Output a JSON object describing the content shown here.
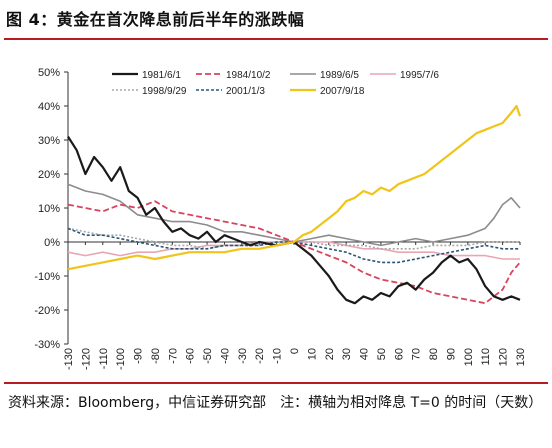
{
  "figure": {
    "title": "图 4：黄金在首次降息前后半年的涨跌幅",
    "source": "资料来源：Bloomberg，中信证券研究部　注：横轴为相对降息 T=0 的时间（天数）"
  },
  "chart_data": {
    "type": "line",
    "title": "",
    "xlabel": "",
    "ylabel": "",
    "xlim": [
      -130,
      130
    ],
    "ylim": [
      -30,
      50
    ],
    "x_ticks": [
      "-130",
      "-120",
      "-110",
      "-100",
      "-90",
      "-80",
      "-70",
      "-60",
      "-50",
      "-40",
      "-30",
      "-20",
      "-10",
      "0",
      "10",
      "20",
      "30",
      "40",
      "50",
      "60",
      "70",
      "80",
      "90",
      "100",
      "110",
      "120",
      "130"
    ],
    "y_ticks": [
      "50%",
      "40%",
      "30%",
      "20%",
      "10%",
      "0%",
      "-10%",
      "-20%",
      "-30%"
    ],
    "y_tick_values": [
      50,
      40,
      30,
      20,
      10,
      0,
      -10,
      -20,
      -30
    ],
    "legend_placement": "top",
    "grid": false,
    "series": [
      {
        "name": "1981/6/1",
        "color": "#1a1a1a",
        "dash": "solid",
        "width": 2.2,
        "points": [
          [
            -130,
            31
          ],
          [
            -125,
            27
          ],
          [
            -120,
            20
          ],
          [
            -115,
            25
          ],
          [
            -110,
            22
          ],
          [
            -105,
            18
          ],
          [
            -100,
            22
          ],
          [
            -95,
            15
          ],
          [
            -90,
            13
          ],
          [
            -85,
            8
          ],
          [
            -80,
            10
          ],
          [
            -75,
            6
          ],
          [
            -70,
            3
          ],
          [
            -65,
            4
          ],
          [
            -60,
            2
          ],
          [
            -55,
            1
          ],
          [
            -50,
            3
          ],
          [
            -45,
            0
          ],
          [
            -40,
            2
          ],
          [
            -35,
            1
          ],
          [
            -30,
            0
          ],
          [
            -25,
            -1
          ],
          [
            -20,
            0
          ],
          [
            -10,
            -1
          ],
          [
            0,
            0
          ],
          [
            5,
            -2
          ],
          [
            10,
            -4
          ],
          [
            15,
            -7
          ],
          [
            20,
            -10
          ],
          [
            25,
            -14
          ],
          [
            30,
            -17
          ],
          [
            35,
            -18
          ],
          [
            40,
            -16
          ],
          [
            45,
            -17
          ],
          [
            50,
            -15
          ],
          [
            55,
            -16
          ],
          [
            60,
            -13
          ],
          [
            65,
            -12
          ],
          [
            70,
            -14
          ],
          [
            75,
            -11
          ],
          [
            80,
            -9
          ],
          [
            85,
            -6
          ],
          [
            90,
            -4
          ],
          [
            95,
            -6
          ],
          [
            100,
            -5
          ],
          [
            105,
            -8
          ],
          [
            110,
            -13
          ],
          [
            115,
            -16
          ],
          [
            120,
            -17
          ],
          [
            125,
            -16
          ],
          [
            130,
            -17
          ]
        ]
      },
      {
        "name": "1984/10/2",
        "color": "#d9435b",
        "dash": "6,3",
        "width": 1.8,
        "points": [
          [
            -130,
            11
          ],
          [
            -120,
            10
          ],
          [
            -110,
            9
          ],
          [
            -100,
            11
          ],
          [
            -90,
            10
          ],
          [
            -80,
            12
          ],
          [
            -70,
            9
          ],
          [
            -60,
            8
          ],
          [
            -50,
            7
          ],
          [
            -40,
            6
          ],
          [
            -30,
            5
          ],
          [
            -20,
            4
          ],
          [
            -10,
            2
          ],
          [
            0,
            0
          ],
          [
            10,
            -2
          ],
          [
            20,
            -4
          ],
          [
            30,
            -6
          ],
          [
            40,
            -9
          ],
          [
            50,
            -11
          ],
          [
            60,
            -12
          ],
          [
            70,
            -13
          ],
          [
            80,
            -15
          ],
          [
            90,
            -16
          ],
          [
            100,
            -17
          ],
          [
            110,
            -18
          ],
          [
            120,
            -14
          ],
          [
            125,
            -9
          ],
          [
            130,
            -6
          ]
        ]
      },
      {
        "name": "1989/6/5",
        "color": "#8c8c8c",
        "dash": "solid",
        "width": 1.6,
        "points": [
          [
            -130,
            17
          ],
          [
            -120,
            15
          ],
          [
            -110,
            14
          ],
          [
            -100,
            12
          ],
          [
            -90,
            8
          ],
          [
            -80,
            7
          ],
          [
            -70,
            6
          ],
          [
            -60,
            6
          ],
          [
            -50,
            5
          ],
          [
            -40,
            3
          ],
          [
            -30,
            3
          ],
          [
            -20,
            2
          ],
          [
            -10,
            1
          ],
          [
            0,
            0
          ],
          [
            10,
            1
          ],
          [
            20,
            2
          ],
          [
            30,
            1
          ],
          [
            40,
            0
          ],
          [
            50,
            -1
          ],
          [
            60,
            0
          ],
          [
            70,
            1
          ],
          [
            80,
            0
          ],
          [
            90,
            1
          ],
          [
            100,
            2
          ],
          [
            110,
            4
          ],
          [
            115,
            7
          ],
          [
            120,
            11
          ],
          [
            125,
            13
          ],
          [
            130,
            10
          ]
        ]
      },
      {
        "name": "1995/7/6",
        "color": "#e8a6b4",
        "dash": "solid",
        "width": 1.6,
        "points": [
          [
            -130,
            -3
          ],
          [
            -120,
            -4
          ],
          [
            -110,
            -3
          ],
          [
            -100,
            -4
          ],
          [
            -90,
            -3
          ],
          [
            -80,
            -3
          ],
          [
            -70,
            -2
          ],
          [
            -60,
            -2
          ],
          [
            -50,
            -1
          ],
          [
            -40,
            -1
          ],
          [
            -30,
            -1
          ],
          [
            -20,
            0
          ],
          [
            -10,
            0
          ],
          [
            0,
            0
          ],
          [
            10,
            0
          ],
          [
            20,
            0
          ],
          [
            30,
            -1
          ],
          [
            40,
            -2
          ],
          [
            50,
            -2
          ],
          [
            60,
            -3
          ],
          [
            70,
            -3
          ],
          [
            80,
            -3
          ],
          [
            90,
            -4
          ],
          [
            100,
            -4
          ],
          [
            110,
            -4
          ],
          [
            120,
            -5
          ],
          [
            130,
            -5
          ]
        ]
      },
      {
        "name": "1998/9/29",
        "color": "#a8a8a8",
        "dash": "2,2",
        "width": 1.6,
        "points": [
          [
            -130,
            4
          ],
          [
            -120,
            3
          ],
          [
            -110,
            2
          ],
          [
            -100,
            2
          ],
          [
            -90,
            1
          ],
          [
            -80,
            0
          ],
          [
            -70,
            -1
          ],
          [
            -60,
            -1
          ],
          [
            -50,
            -2
          ],
          [
            -40,
            -1
          ],
          [
            -30,
            -1
          ],
          [
            -20,
            -1
          ],
          [
            -10,
            0
          ],
          [
            0,
            0
          ],
          [
            10,
            0
          ],
          [
            20,
            -1
          ],
          [
            30,
            -1
          ],
          [
            40,
            -1
          ],
          [
            50,
            -2
          ],
          [
            60,
            -2
          ],
          [
            70,
            -2
          ],
          [
            80,
            -1
          ],
          [
            90,
            -1
          ],
          [
            100,
            -1
          ],
          [
            110,
            0
          ],
          [
            120,
            0
          ],
          [
            130,
            0
          ]
        ]
      },
      {
        "name": "2001/1/3",
        "color": "#2b5577",
        "dash": "3,2",
        "width": 1.6,
        "points": [
          [
            -130,
            4
          ],
          [
            -120,
            2
          ],
          [
            -110,
            2
          ],
          [
            -100,
            1
          ],
          [
            -90,
            0
          ],
          [
            -80,
            -1
          ],
          [
            -70,
            -2
          ],
          [
            -60,
            -2
          ],
          [
            -50,
            -2
          ],
          [
            -40,
            -1
          ],
          [
            -30,
            -1
          ],
          [
            -20,
            -1
          ],
          [
            -10,
            0
          ],
          [
            0,
            0
          ],
          [
            10,
            -1
          ],
          [
            20,
            -2
          ],
          [
            30,
            -3
          ],
          [
            40,
            -5
          ],
          [
            50,
            -6
          ],
          [
            60,
            -6
          ],
          [
            70,
            -5
          ],
          [
            80,
            -4
          ],
          [
            90,
            -3
          ],
          [
            100,
            -2
          ],
          [
            110,
            -1
          ],
          [
            120,
            -2
          ],
          [
            130,
            -2
          ]
        ]
      },
      {
        "name": "2007/9/18",
        "color": "#f0c419",
        "dash": "solid",
        "width": 2.2,
        "points": [
          [
            -130,
            -8
          ],
          [
            -120,
            -7
          ],
          [
            -110,
            -6
          ],
          [
            -100,
            -5
          ],
          [
            -90,
            -4
          ],
          [
            -80,
            -5
          ],
          [
            -70,
            -4
          ],
          [
            -60,
            -3
          ],
          [
            -50,
            -3
          ],
          [
            -40,
            -3
          ],
          [
            -30,
            -2
          ],
          [
            -20,
            -2
          ],
          [
            -10,
            -1
          ],
          [
            0,
            0
          ],
          [
            5,
            2
          ],
          [
            10,
            3
          ],
          [
            15,
            5
          ],
          [
            20,
            7
          ],
          [
            25,
            9
          ],
          [
            30,
            12
          ],
          [
            35,
            13
          ],
          [
            40,
            15
          ],
          [
            45,
            14
          ],
          [
            50,
            16
          ],
          [
            55,
            15
          ],
          [
            60,
            17
          ],
          [
            65,
            18
          ],
          [
            70,
            19
          ],
          [
            75,
            20
          ],
          [
            80,
            22
          ],
          [
            85,
            24
          ],
          [
            90,
            26
          ],
          [
            95,
            28
          ],
          [
            100,
            30
          ],
          [
            105,
            32
          ],
          [
            110,
            33
          ],
          [
            115,
            34
          ],
          [
            120,
            35
          ],
          [
            125,
            38
          ],
          [
            128,
            40
          ],
          [
            130,
            37
          ]
        ]
      }
    ]
  }
}
